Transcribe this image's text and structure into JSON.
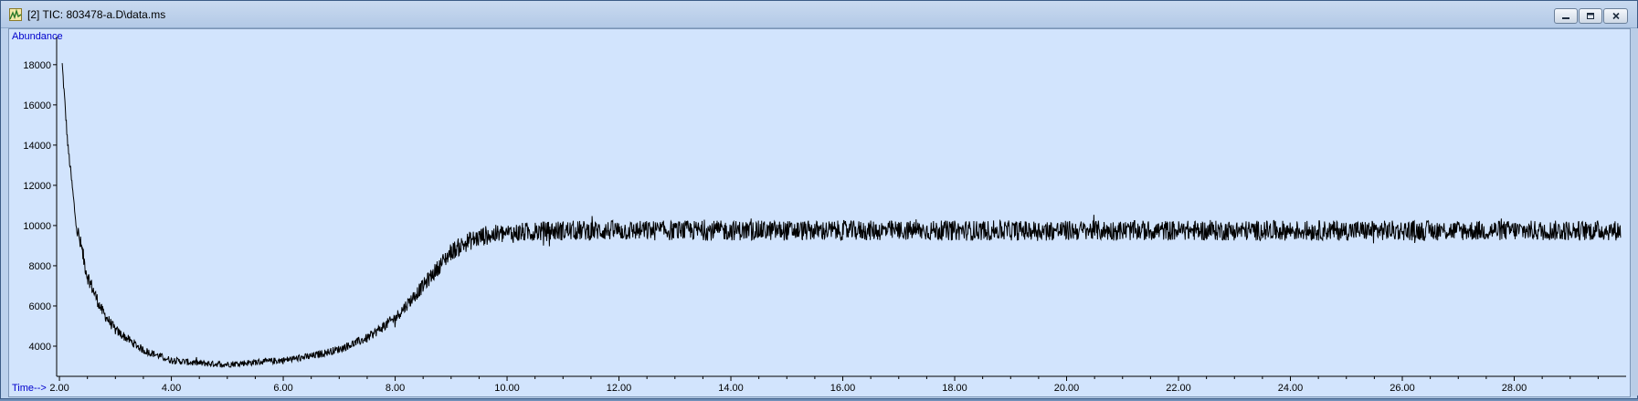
{
  "window": {
    "title": "[2] TIC: 803478-a.D\\data.ms",
    "icon": "chromatogram-app-icon",
    "controls": [
      "minimize-icon",
      "restore-icon",
      "close-icon"
    ]
  },
  "colors": {
    "plot_background": "#d2e4fd",
    "trace": "#000000",
    "axis_label": "#0000cc",
    "titlebar": "#b8cce6"
  },
  "chart_data": {
    "type": "line",
    "title": "",
    "xlabel": "Time-->",
    "ylabel": "Abundance",
    "xlim": [
      1.95,
      30.0
    ],
    "ylim": [
      2500,
      19400
    ],
    "x_ticks": [
      "2.00",
      "4.00",
      "6.00",
      "8.00",
      "10.00",
      "12.00",
      "14.00",
      "16.00",
      "18.00",
      "20.00",
      "22.00",
      "24.00",
      "26.00",
      "28.00"
    ],
    "x_tick_values": [
      2,
      4,
      6,
      8,
      10,
      12,
      14,
      16,
      18,
      20,
      22,
      24,
      26,
      28
    ],
    "y_ticks": [
      "4000",
      "6000",
      "8000",
      "10000",
      "12000",
      "14000",
      "16000",
      "18000"
    ],
    "y_tick_values": [
      4000,
      6000,
      8000,
      10000,
      12000,
      14000,
      16000,
      18000
    ],
    "grid": false,
    "series": [
      {
        "name": "",
        "noise_amplitude": 500,
        "x": [
          2.05,
          2.15,
          2.3,
          2.5,
          2.75,
          3.0,
          3.5,
          4.0,
          4.5,
          5.0,
          5.5,
          6.0,
          6.5,
          7.0,
          7.5,
          8.0,
          8.5,
          9.0,
          9.3,
          9.6,
          10.0,
          10.5,
          11.0,
          12.0,
          14.0,
          16.0,
          18.0,
          20.0,
          22.0,
          24.0,
          26.0,
          28.0,
          29.9
        ],
        "y": [
          18000,
          14000,
          10000,
          7500,
          5800,
          4800,
          3800,
          3300,
          3150,
          3100,
          3200,
          3300,
          3500,
          3850,
          4400,
          5400,
          7000,
          8700,
          9200,
          9500,
          9600,
          9700,
          9750,
          9750,
          9750,
          9750,
          9750,
          9750,
          9750,
          9750,
          9750,
          9750,
          9750
        ]
      }
    ]
  }
}
